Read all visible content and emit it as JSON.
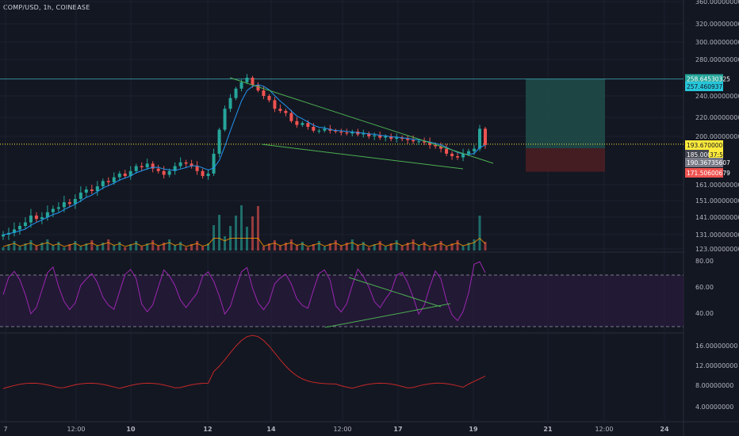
{
  "header": {
    "title": "COMP/USD, 1h, COINBASE"
  },
  "colors": {
    "background": "#131722",
    "grid": "#1e2230",
    "axis_text": "#b2b5be",
    "candle_up": "#26a69a",
    "candle_down": "#ef5350",
    "ma": "#2196f3",
    "trendline": "#4caf50",
    "rsi": "#9c27b0",
    "rsi_band": "#2a1b3d",
    "volume_ma": "#ff9800",
    "bottom_indicator": "#c62828",
    "current_price": "#ffeb3b",
    "target_zone": "#1e4a48",
    "stop_zone": "#4a1e24"
  },
  "price_axis": {
    "ticks": [
      "360.00000000",
      "320.00000000",
      "300.00000000",
      "280.00000000",
      "240.00000000",
      "220.00000000",
      "200.00000000",
      "161.00000000",
      "151.00000000",
      "141.00000000",
      "131.00000000",
      "123.00000000"
    ],
    "tag_values": [
      258.6453,
      257.4609,
      193.67,
      185.0,
      190.3673,
      171.506
    ],
    "tags": [
      {
        "label": "258.64530325",
        "bg": "#26a69a",
        "fg": "#ffffff"
      },
      {
        "label": "257.46093779",
        "bg": "#26c6da",
        "fg": "#131722"
      },
      {
        "label": "193.67000000",
        "bg": "#ffeb3b",
        "fg": "#131722"
      },
      {
        "label": "185.000",
        "bg": "#434651",
        "fg": "#ffffff"
      },
      {
        "label": "37:57",
        "bg": "#ffeb3b",
        "fg": "#131722"
      },
      {
        "label": "190.36735607",
        "bg": "#787b86",
        "fg": "#ffffff"
      },
      {
        "label": "171.50600679",
        "bg": "#ef5350",
        "fg": "#ffffff"
      }
    ]
  },
  "rsi_axis": {
    "ticks": [
      "80.00",
      "60.00",
      "40.00"
    ]
  },
  "bottom_axis": {
    "ticks": [
      "16.00000000",
      "12.00000000",
      "8.00000000",
      "4.00000000"
    ]
  },
  "time_axis": {
    "ticks": [
      "7",
      "12:00",
      "10",
      "12",
      "14",
      "12:00",
      "17",
      "19",
      "21",
      "12:00",
      "24"
    ]
  },
  "chart_data": {
    "type": "candlestick",
    "title": "COMP/USD, 1h, COINBASE",
    "price_close_approx": [
      131,
      132,
      134,
      136,
      138,
      142,
      140,
      141,
      144,
      146,
      147,
      150,
      149,
      152,
      156,
      158,
      157,
      160,
      164,
      163,
      167,
      170,
      168,
      172,
      176,
      175,
      178,
      174,
      172,
      169,
      172,
      176,
      179,
      178,
      176,
      172,
      168,
      170,
      186,
      207,
      228,
      238,
      248,
      255,
      260,
      252,
      246,
      240,
      236,
      228,
      226,
      224,
      216,
      212,
      214,
      210,
      206,
      206,
      208,
      206,
      205,
      204,
      203,
      205,
      202,
      203,
      200,
      201,
      199,
      200,
      198,
      199,
      198,
      197,
      196,
      196,
      195,
      193,
      192,
      190,
      186,
      184,
      183,
      186,
      188,
      190,
      208,
      193
    ],
    "current_price": 193.67,
    "trade_setup": {
      "target": 258.64530325,
      "entry": 190.36735607,
      "stop": 171.50600679
    },
    "rsi_range": [
      20,
      80
    ],
    "rsi_levels": [
      70,
      30
    ]
  }
}
